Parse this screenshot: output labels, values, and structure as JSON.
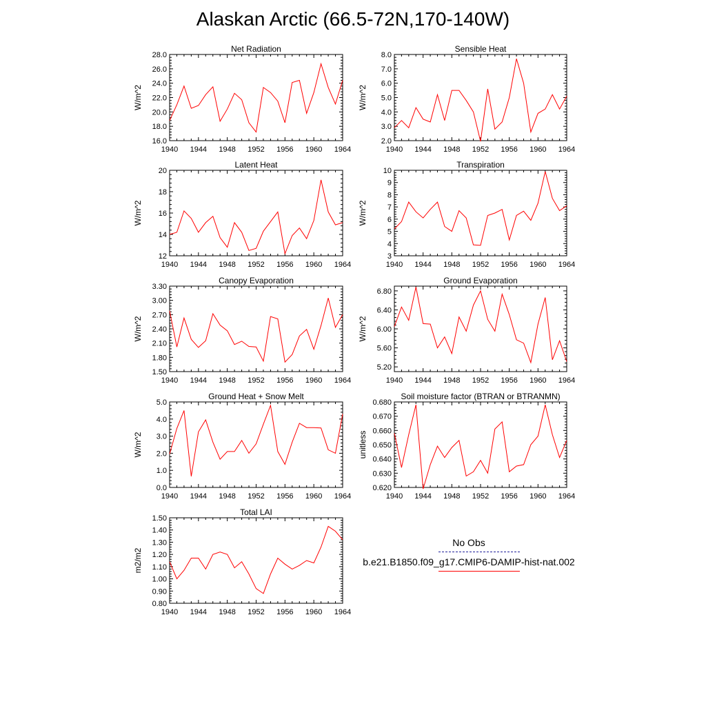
{
  "title": "Alaskan Arctic (66.5-72N,170-140W)",
  "legend": {
    "obs_label": "No Obs",
    "model_label": "b.e21.B1850.f09_g17.CMIP6-DAMIP-hist-nat.002",
    "obs_color": "#1f1f9a",
    "model_color": "#ff0000"
  },
  "chart_data": [
    {
      "type": "line",
      "title": "Net Radiation",
      "ylabel": "W/m^2",
      "xlim": [
        1940,
        1964
      ],
      "ylim": [
        16.0,
        28.0
      ],
      "xticks": [
        "1940",
        "1944",
        "1948",
        "1952",
        "1956",
        "1960",
        "1964"
      ],
      "yticks": [
        "16.0",
        "18.0",
        "20.0",
        "22.0",
        "24.0",
        "26.0",
        "28.0"
      ],
      "x": [
        1940,
        1941,
        1942,
        1943,
        1944,
        1945,
        1946,
        1947,
        1948,
        1949,
        1950,
        1951,
        1952,
        1953,
        1954,
        1955,
        1956,
        1957,
        1958,
        1959,
        1960,
        1961,
        1962,
        1963,
        1964
      ],
      "series": [
        {
          "values": [
            18.8,
            21.0,
            23.6,
            20.5,
            20.9,
            22.4,
            23.5,
            18.7,
            20.4,
            22.6,
            21.7,
            18.5,
            17.2,
            23.4,
            22.7,
            21.5,
            18.5,
            24.1,
            24.4,
            19.8,
            22.7,
            26.7,
            23.4,
            21.1,
            24.4
          ]
        }
      ]
    },
    {
      "type": "line",
      "title": "Sensible Heat",
      "ylabel": "W/m^2",
      "xlim": [
        1940,
        1964
      ],
      "ylim": [
        2.0,
        8.0
      ],
      "xticks": [
        "1940",
        "1944",
        "1948",
        "1952",
        "1956",
        "1960",
        "1964"
      ],
      "yticks": [
        "2.0",
        "3.0",
        "4.0",
        "5.0",
        "6.0",
        "7.0",
        "8.0"
      ],
      "x": [
        1940,
        1941,
        1942,
        1943,
        1944,
        1945,
        1946,
        1947,
        1948,
        1949,
        1950,
        1951,
        1952,
        1953,
        1954,
        1955,
        1956,
        1957,
        1958,
        1959,
        1960,
        1961,
        1962,
        1963,
        1964
      ],
      "series": [
        {
          "values": [
            2.9,
            3.4,
            2.9,
            4.3,
            3.5,
            3.3,
            5.2,
            3.4,
            5.5,
            5.5,
            4.8,
            4.0,
            1.95,
            5.6,
            2.8,
            3.3,
            5.0,
            7.7,
            6.0,
            2.6,
            3.9,
            4.2,
            5.2,
            4.2,
            5.1
          ]
        }
      ]
    },
    {
      "type": "line",
      "title": "Latent Heat",
      "ylabel": "W/m^2",
      "xlim": [
        1940,
        1964
      ],
      "ylim": [
        12,
        20
      ],
      "xticks": [
        "1940",
        "1944",
        "1948",
        "1952",
        "1956",
        "1960",
        "1964"
      ],
      "yticks": [
        "12",
        "14",
        "16",
        "18",
        "20"
      ],
      "x": [
        1940,
        1941,
        1942,
        1943,
        1944,
        1945,
        1946,
        1947,
        1948,
        1949,
        1950,
        1951,
        1952,
        1953,
        1954,
        1955,
        1956,
        1957,
        1958,
        1959,
        1960,
        1961,
        1962,
        1963,
        1964
      ],
      "series": [
        {
          "values": [
            14.0,
            14.2,
            16.2,
            15.5,
            14.2,
            15.1,
            15.7,
            13.7,
            12.8,
            15.1,
            14.2,
            12.5,
            12.7,
            14.3,
            15.2,
            16.1,
            12.2,
            13.9,
            14.6,
            13.6,
            15.3,
            19.1,
            16.1,
            14.9,
            15.1
          ]
        }
      ]
    },
    {
      "type": "line",
      "title": "Transpiration",
      "ylabel": "W/m^2",
      "xlim": [
        1940,
        1964
      ],
      "ylim": [
        3,
        10
      ],
      "xticks": [
        "1940",
        "1944",
        "1948",
        "1952",
        "1956",
        "1960",
        "1964"
      ],
      "yticks": [
        "3",
        "4",
        "5",
        "6",
        "7",
        "8",
        "9",
        "10"
      ],
      "x": [
        1940,
        1941,
        1942,
        1943,
        1944,
        1945,
        1946,
        1947,
        1948,
        1949,
        1950,
        1951,
        1952,
        1953,
        1954,
        1955,
        1956,
        1957,
        1958,
        1959,
        1960,
        1961,
        1962,
        1963,
        1964
      ],
      "series": [
        {
          "values": [
            5.2,
            5.8,
            7.4,
            6.6,
            6.1,
            6.8,
            7.4,
            5.4,
            5.0,
            6.7,
            6.1,
            3.9,
            3.85,
            6.3,
            6.5,
            6.8,
            4.3,
            6.3,
            6.65,
            5.9,
            7.3,
            9.9,
            7.7,
            6.7,
            7.1
          ]
        }
      ]
    },
    {
      "type": "line",
      "title": "Canopy Evaporation",
      "ylabel": "W/m^2",
      "xlim": [
        1940,
        1964
      ],
      "ylim": [
        1.5,
        3.3
      ],
      "xticks": [
        "1940",
        "1944",
        "1948",
        "1952",
        "1956",
        "1960",
        "1964"
      ],
      "yticks": [
        "1.50",
        "1.80",
        "2.10",
        "2.40",
        "2.70",
        "3.00",
        "3.30"
      ],
      "x": [
        1940,
        1941,
        1942,
        1943,
        1944,
        1945,
        1946,
        1947,
        1948,
        1949,
        1950,
        1951,
        1952,
        1953,
        1954,
        1955,
        1956,
        1957,
        1958,
        1959,
        1960,
        1961,
        1962,
        1963,
        1964
      ],
      "series": [
        {
          "values": [
            2.78,
            2.02,
            2.63,
            2.18,
            2.01,
            2.15,
            2.72,
            2.48,
            2.36,
            2.07,
            2.14,
            2.03,
            2.02,
            1.72,
            2.66,
            2.61,
            1.7,
            1.86,
            2.25,
            2.39,
            1.97,
            2.47,
            3.05,
            2.43,
            2.7
          ]
        }
      ]
    },
    {
      "type": "line",
      "title": "Ground Evaporation",
      "ylabel": "W/m^2",
      "xlim": [
        1940,
        1964
      ],
      "ylim": [
        5.1,
        6.9
      ],
      "xticks": [
        "1940",
        "1944",
        "1948",
        "1952",
        "1956",
        "1960",
        "1964"
      ],
      "yticks": [
        "5.20",
        "5.60",
        "6.00",
        "6.40",
        "6.80"
      ],
      "ytick_values": [
        5.2,
        5.6,
        6.0,
        6.4,
        6.8
      ],
      "x": [
        1940,
        1941,
        1942,
        1943,
        1944,
        1945,
        1946,
        1947,
        1948,
        1949,
        1950,
        1951,
        1952,
        1953,
        1954,
        1955,
        1956,
        1957,
        1958,
        1959,
        1960,
        1961,
        1962,
        1963,
        1964
      ],
      "series": [
        {
          "values": [
            6.05,
            6.46,
            6.18,
            6.88,
            6.11,
            6.1,
            5.6,
            5.83,
            5.48,
            6.25,
            5.95,
            6.5,
            6.8,
            6.2,
            5.95,
            6.73,
            6.3,
            5.77,
            5.7,
            5.29,
            6.1,
            6.66,
            5.35,
            5.75,
            5.31
          ]
        }
      ]
    },
    {
      "type": "line",
      "title": "Ground Heat + Snow Melt",
      "ylabel": "W/m^2",
      "xlim": [
        1940,
        1964
      ],
      "ylim": [
        0.0,
        5.0
      ],
      "xticks": [
        "1940",
        "1944",
        "1948",
        "1952",
        "1956",
        "1960",
        "1964"
      ],
      "yticks": [
        "0.0",
        "1.0",
        "2.0",
        "3.0",
        "4.0",
        "5.0"
      ],
      "x": [
        1940,
        1941,
        1942,
        1943,
        1944,
        1945,
        1946,
        1947,
        1948,
        1949,
        1950,
        1951,
        1952,
        1953,
        1954,
        1955,
        1956,
        1957,
        1958,
        1959,
        1960,
        1961,
        1962,
        1963,
        1964
      ],
      "series": [
        {
          "values": [
            1.95,
            3.45,
            4.5,
            0.65,
            3.25,
            3.95,
            2.65,
            1.65,
            2.1,
            2.1,
            2.75,
            2.0,
            2.55,
            3.7,
            4.8,
            2.1,
            1.35,
            2.65,
            3.75,
            3.5,
            3.5,
            3.48,
            2.2,
            2.0,
            4.3
          ]
        }
      ]
    },
    {
      "type": "line",
      "title": "Soil moisture factor (BTRAN or BTRANMN)",
      "ylabel": "unitless",
      "xlim": [
        1940,
        1964
      ],
      "ylim": [
        0.62,
        0.68
      ],
      "xticks": [
        "1940",
        "1944",
        "1948",
        "1952",
        "1956",
        "1960",
        "1964"
      ],
      "yticks": [
        "0.620",
        "0.630",
        "0.640",
        "0.650",
        "0.660",
        "0.670",
        "0.680"
      ],
      "x": [
        1940,
        1941,
        1942,
        1943,
        1944,
        1945,
        1946,
        1947,
        1948,
        1949,
        1950,
        1951,
        1952,
        1953,
        1954,
        1955,
        1956,
        1957,
        1958,
        1959,
        1960,
        1961,
        1962,
        1963,
        1964
      ],
      "series": [
        {
          "values": [
            0.658,
            0.634,
            0.657,
            0.678,
            0.619,
            0.636,
            0.649,
            0.641,
            0.648,
            0.653,
            0.628,
            0.631,
            0.639,
            0.63,
            0.661,
            0.666,
            0.631,
            0.635,
            0.636,
            0.65,
            0.656,
            0.678,
            0.657,
            0.641,
            0.653
          ]
        }
      ]
    },
    {
      "type": "line",
      "title": "Total LAI",
      "ylabel": "m2/m2",
      "xlim": [
        1940,
        1964
      ],
      "ylim": [
        0.8,
        1.5
      ],
      "xticks": [
        "1940",
        "1944",
        "1948",
        "1952",
        "1956",
        "1960",
        "1964"
      ],
      "yticks": [
        "0.80",
        "0.90",
        "1.00",
        "1.10",
        "1.20",
        "1.30",
        "1.40",
        "1.50"
      ],
      "x": [
        1940,
        1941,
        1942,
        1943,
        1944,
        1945,
        1946,
        1947,
        1948,
        1949,
        1950,
        1951,
        1952,
        1953,
        1954,
        1955,
        1956,
        1957,
        1958,
        1959,
        1960,
        1961,
        1962,
        1963,
        1964
      ],
      "series": [
        {
          "values": [
            1.14,
            1.0,
            1.07,
            1.17,
            1.17,
            1.08,
            1.2,
            1.22,
            1.2,
            1.09,
            1.14,
            1.04,
            0.92,
            0.88,
            1.04,
            1.17,
            1.12,
            1.08,
            1.11,
            1.15,
            1.13,
            1.26,
            1.43,
            1.39,
            1.32
          ]
        }
      ]
    }
  ]
}
